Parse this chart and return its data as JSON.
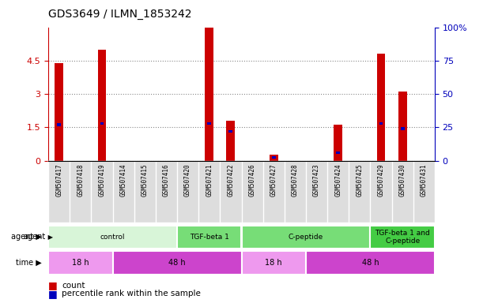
{
  "title": "GDS3649 / ILMN_1853242",
  "samples": [
    "GSM507417",
    "GSM507418",
    "GSM507419",
    "GSM507414",
    "GSM507415",
    "GSM507416",
    "GSM507420",
    "GSM507421",
    "GSM507422",
    "GSM507426",
    "GSM507427",
    "GSM507428",
    "GSM507423",
    "GSM507424",
    "GSM507425",
    "GSM507429",
    "GSM507430",
    "GSM507431"
  ],
  "count_values": [
    4.4,
    0.0,
    5.0,
    0.0,
    0.0,
    0.0,
    0.0,
    6.0,
    1.8,
    0.0,
    0.25,
    0.0,
    0.0,
    1.6,
    0.0,
    4.8,
    3.1,
    0.0
  ],
  "percentile_values": [
    27,
    0,
    28,
    0,
    0,
    0,
    0,
    28,
    22,
    0,
    2.5,
    0,
    0,
    6,
    0,
    28,
    24,
    0
  ],
  "ylim_left": [
    0,
    6
  ],
  "ylim_right": [
    0,
    100
  ],
  "yticks_left": [
    0,
    1.5,
    3.0,
    4.5
  ],
  "ytick_labels_left": [
    "0",
    "1.5",
    "3",
    "4.5"
  ],
  "yticks_right": [
    0,
    25,
    50,
    75,
    100
  ],
  "ytick_labels_right": [
    "0",
    "25",
    "50",
    "75",
    "100%"
  ],
  "bar_color_count": "#cc0000",
  "bar_color_percentile": "#0000bb",
  "agent_groups": [
    {
      "label": "control",
      "start": 0,
      "end": 6,
      "color": "#d8f5d8"
    },
    {
      "label": "TGF-beta 1",
      "start": 6,
      "end": 9,
      "color": "#77dd77"
    },
    {
      "label": "C-peptide",
      "start": 9,
      "end": 15,
      "color": "#77dd77"
    },
    {
      "label": "TGF-beta 1 and\nC-peptide",
      "start": 15,
      "end": 18,
      "color": "#44cc44"
    }
  ],
  "time_groups": [
    {
      "label": "18 h",
      "start": 0,
      "end": 3,
      "color": "#ee99ee"
    },
    {
      "label": "48 h",
      "start": 3,
      "end": 9,
      "color": "#cc44cc"
    },
    {
      "label": "18 h",
      "start": 9,
      "end": 12,
      "color": "#ee99ee"
    },
    {
      "label": "48 h",
      "start": 12,
      "end": 18,
      "color": "#cc44cc"
    }
  ],
  "grid_color": "#888888",
  "bar_width": 0.4,
  "pct_bar_width": 0.18
}
